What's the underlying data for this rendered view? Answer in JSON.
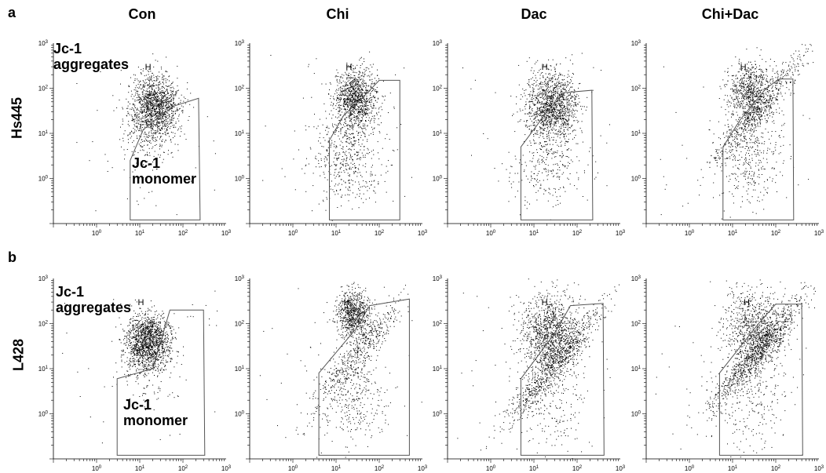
{
  "figure": {
    "panel_letters": [
      "a",
      "b"
    ],
    "columns": [
      "Con",
      "Chi",
      "Dac",
      "Chi+Dac"
    ],
    "rows": [
      "Hs445",
      "L428"
    ],
    "gate_label": "H",
    "annotations": {
      "aggregates": [
        "Jc-1",
        "aggregates"
      ],
      "monomer": [
        "Jc-1",
        "monomer"
      ]
    },
    "dot_color": "#000000",
    "gate_color": "#555555"
  },
  "chart_data": [
    {
      "type": "scatter",
      "row": "Hs445",
      "panel": "Con",
      "x_scale": "log",
      "y_scale": "log",
      "xlim": [
        0.1,
        1000
      ],
      "ylim": [
        0.1,
        1000
      ],
      "x_tick_labels": [
        "10^0",
        "10^1",
        "10^2",
        "10^3"
      ],
      "y_tick_labels": [
        "10^0",
        "10^1",
        "10^2",
        "10^3"
      ],
      "gate_label": "H",
      "clusters": [
        {
          "x": 22,
          "y": 40,
          "spread": 0.28,
          "n": 1400,
          "label": "aggregates"
        },
        {
          "x": 12,
          "y": 8,
          "spread": 0.3,
          "n": 150,
          "label": "monomer"
        }
      ],
      "gate": [
        [
          6,
          1.1
        ],
        [
          6,
          2.5
        ],
        [
          12,
          12
        ],
        [
          20,
          18
        ],
        [
          60,
          40
        ],
        [
          230,
          60
        ],
        [
          250,
          0.12
        ],
        [
          6,
          0.12
        ]
      ]
    },
    {
      "type": "scatter",
      "row": "Hs445",
      "panel": "Chi",
      "x_scale": "log",
      "y_scale": "log",
      "xlim": [
        0.1,
        1000
      ],
      "ylim": [
        0.1,
        1000
      ],
      "x_tick_labels": [
        "10^0",
        "10^1",
        "10^2",
        "10^3"
      ],
      "y_tick_labels": [
        "10^0",
        "10^1",
        "10^2",
        "10^3"
      ],
      "gate_label": "H",
      "clusters": [
        {
          "x": 28,
          "y": 60,
          "spread": 0.25,
          "n": 1100,
          "label": "aggregates"
        },
        {
          "x": 18,
          "y": 3,
          "spread": 0.4,
          "n": 500,
          "label": "monomer"
        }
      ],
      "gate": [
        [
          7,
          0.12
        ],
        [
          7,
          7
        ],
        [
          15,
          25
        ],
        [
          40,
          60
        ],
        [
          100,
          150
        ],
        [
          300,
          150
        ],
        [
          300,
          0.12
        ]
      ]
    },
    {
      "type": "scatter",
      "row": "Hs445",
      "panel": "Dac",
      "x_scale": "log",
      "y_scale": "log",
      "xlim": [
        0.1,
        1000
      ],
      "ylim": [
        0.1,
        1000
      ],
      "x_tick_labels": [
        "10^0",
        "10^1",
        "10^2",
        "10^3"
      ],
      "y_tick_labels": [
        "10^0",
        "10^1",
        "10^2",
        "10^3"
      ],
      "gate_label": "H",
      "clusters": [
        {
          "x": 25,
          "y": 40,
          "spread": 0.3,
          "n": 1300,
          "label": "aggregates"
        },
        {
          "x": 20,
          "y": 2.5,
          "spread": 0.4,
          "n": 300,
          "label": "monomer"
        }
      ],
      "gate": [
        [
          5,
          0.12
        ],
        [
          5,
          5
        ],
        [
          20,
          30
        ],
        [
          50,
          80
        ],
        [
          220,
          90
        ],
        [
          230,
          0.12
        ]
      ]
    },
    {
      "type": "scatter",
      "row": "Hs445",
      "panel": "Chi+Dac",
      "x_scale": "log",
      "y_scale": "log",
      "xlim": [
        0.1,
        1000
      ],
      "ylim": [
        0.1,
        1000
      ],
      "x_tick_labels": [
        "10^0",
        "10^1",
        "10^2",
        "10^3"
      ],
      "y_tick_labels": [
        "10^0",
        "10^1",
        "10^2",
        "10^3"
      ],
      "gate_label": "H",
      "clusters": [
        {
          "x": 25,
          "y": 90,
          "spread": 0.25,
          "n": 700,
          "label": "aggregates"
        },
        {
          "x": 45,
          "y": 40,
          "spread": 0.25,
          "n": 600,
          "label": "diagonal"
        },
        {
          "x": 25,
          "y": 3,
          "spread": 0.4,
          "n": 350,
          "label": "monomer"
        }
      ],
      "gate": [
        [
          6,
          0.12
        ],
        [
          6,
          5
        ],
        [
          15,
          20
        ],
        [
          60,
          100
        ],
        [
          120,
          160
        ],
        [
          250,
          160
        ],
        [
          260,
          0.12
        ]
      ]
    },
    {
      "type": "scatter",
      "row": "L428",
      "panel": "Con",
      "x_scale": "log",
      "y_scale": "log",
      "xlim": [
        0.1,
        1000
      ],
      "ylim": [
        0.1,
        1000
      ],
      "x_tick_labels": [
        "10^0",
        "10^1",
        "10^2",
        "10^3"
      ],
      "y_tick_labels": [
        "10^0",
        "10^1",
        "10^2",
        "10^3"
      ],
      "gate_label": "H",
      "clusters": [
        {
          "x": 15,
          "y": 40,
          "spread": 0.25,
          "n": 1500,
          "label": "aggregates"
        },
        {
          "x": 12,
          "y": 8,
          "spread": 0.3,
          "n": 100,
          "label": "monomer"
        }
      ],
      "gate": [
        [
          3,
          0.12
        ],
        [
          3,
          6
        ],
        [
          20,
          10
        ],
        [
          50,
          200
        ],
        [
          300,
          200
        ],
        [
          320,
          0.12
        ]
      ]
    },
    {
      "type": "scatter",
      "row": "L428",
      "panel": "Chi",
      "x_scale": "log",
      "y_scale": "log",
      "xlim": [
        0.1,
        1000
      ],
      "ylim": [
        0.1,
        1000
      ],
      "x_tick_labels": [
        "10^0",
        "10^1",
        "10^2",
        "10^3"
      ],
      "y_tick_labels": [
        "10^0",
        "10^1",
        "10^2",
        "10^3"
      ],
      "gate_label": "H",
      "clusters": [
        {
          "x": 25,
          "y": 160,
          "spread": 0.2,
          "n": 800,
          "label": "aggregates"
        },
        {
          "x": 30,
          "y": 20,
          "spread": 0.3,
          "n": 500,
          "label": "diagonal"
        },
        {
          "x": 25,
          "y": 2,
          "spread": 0.4,
          "n": 300,
          "label": "monomer"
        }
      ],
      "gate": [
        [
          4,
          0.12
        ],
        [
          4,
          8
        ],
        [
          30,
          80
        ],
        [
          60,
          250
        ],
        [
          500,
          350
        ],
        [
          500,
          0.12
        ]
      ]
    },
    {
      "type": "scatter",
      "row": "L428",
      "panel": "Dac",
      "x_scale": "log",
      "y_scale": "log",
      "xlim": [
        0.1,
        1000
      ],
      "ylim": [
        0.1,
        1000
      ],
      "x_tick_labels": [
        "10^0",
        "10^1",
        "10^2",
        "10^3"
      ],
      "y_tick_labels": [
        "10^0",
        "10^1",
        "10^2",
        "10^3"
      ],
      "gate_label": "H",
      "clusters": [
        {
          "x": 25,
          "y": 60,
          "spread": 0.35,
          "n": 1200,
          "label": "aggregates"
        },
        {
          "x": 30,
          "y": 12,
          "spread": 0.35,
          "n": 700,
          "label": "diagonal"
        },
        {
          "x": 20,
          "y": 2,
          "spread": 0.45,
          "n": 250,
          "label": "monomer"
        }
      ],
      "gate": [
        [
          5,
          0.12
        ],
        [
          5,
          6
        ],
        [
          30,
          60
        ],
        [
          70,
          250
        ],
        [
          400,
          280
        ],
        [
          420,
          0.12
        ]
      ]
    },
    {
      "type": "scatter",
      "row": "L428",
      "panel": "Chi+Dac",
      "x_scale": "log",
      "y_scale": "log",
      "xlim": [
        0.1,
        1000
      ],
      "ylim": [
        0.1,
        1000
      ],
      "x_tick_labels": [
        "10^0",
        "10^1",
        "10^2",
        "10^3"
      ],
      "y_tick_labels": [
        "10^0",
        "10^1",
        "10^2",
        "10^3"
      ],
      "gate_label": "H",
      "clusters": [
        {
          "x": 30,
          "y": 80,
          "spread": 0.35,
          "n": 900,
          "label": "aggregates"
        },
        {
          "x": 40,
          "y": 25,
          "spread": 0.3,
          "n": 900,
          "label": "diagonal"
        },
        {
          "x": 25,
          "y": 2,
          "spread": 0.45,
          "n": 250,
          "label": "monomer"
        }
      ],
      "gate": [
        [
          5,
          0.12
        ],
        [
          5,
          8
        ],
        [
          40,
          100
        ],
        [
          100,
          270
        ],
        [
          400,
          270
        ],
        [
          420,
          0.12
        ]
      ]
    }
  ]
}
